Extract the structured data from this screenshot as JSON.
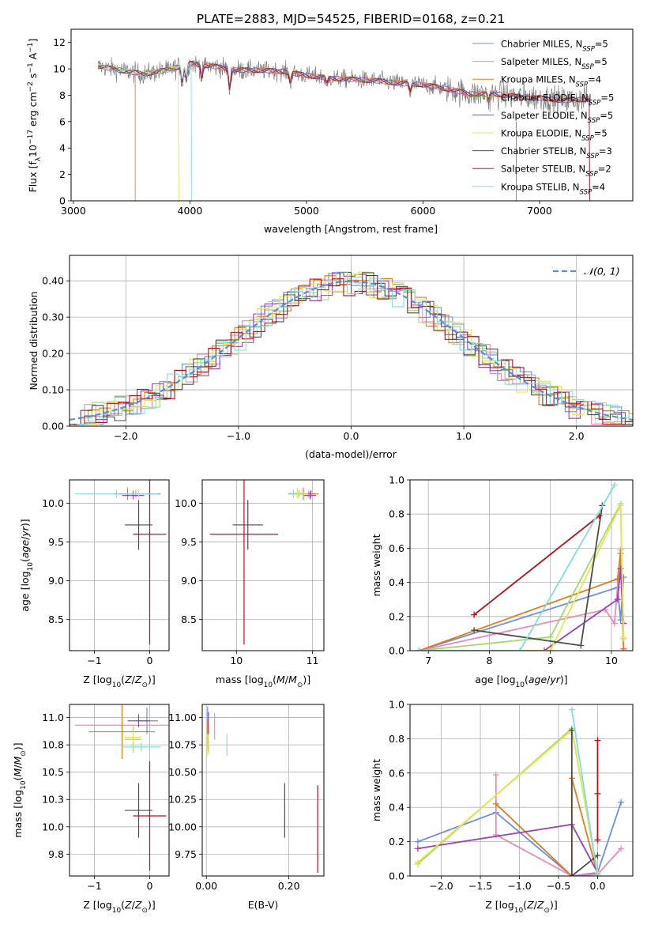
{
  "title": "PLATE=2883, MJD=54525, FIBERID=0168, z=0.21",
  "colors": {
    "Chabrier MILES": "#6e8fde",
    "Salpeter MILES": "#e88ac1",
    "Kroupa MILES": "#e07b1e",
    "Chabrier ELODIE": "#a2d96a",
    "Salpeter ELODIE": "#9b3fb5",
    "Kroupa ELODIE": "#e5e64d",
    "Chabrier STELIB": "#4d4d4d",
    "Salpeter STELIB": "#b3141c",
    "Kroupa STELIB": "#7fdede"
  },
  "chart_data": [
    {
      "id": "spectrum",
      "type": "line",
      "title": "PLATE=2883, MJD=54525, FIBERID=0168, z=0.21",
      "xlabel": "wavelength [Angstrom, rest frame]",
      "ylabel": "Flux [f_λ 10^-17 erg cm^-2 s^-1 A^-1]",
      "xlim": [
        2980,
        7800
      ],
      "ylim": [
        0,
        13
      ],
      "xticks": [
        3000,
        4000,
        5000,
        6000,
        7000
      ],
      "yticks": [
        0,
        2,
        4,
        6,
        8,
        10,
        12
      ],
      "legend_position": "top-right",
      "series": [
        {
          "name": "Chabrier MILES, N_SSP=5",
          "color": "#6e8fde"
        },
        {
          "name": "Salpeter MILES, N_SSP=5",
          "color": "#e88ac1"
        },
        {
          "name": "Kroupa MILES, N_SSP=4",
          "color": "#e07b1e"
        },
        {
          "name": "Chabrier ELODIE, N_SSP=5",
          "color": "#a2d96a"
        },
        {
          "name": "Salpeter ELODIE, N_SSP=5",
          "color": "#9b3fb5"
        },
        {
          "name": "Kroupa ELODIE, N_SSP=5",
          "color": "#e5e64d"
        },
        {
          "name": "Chabrier STELIB, N_SSP=3",
          "color": "#4d4d4d"
        },
        {
          "name": "Salpeter STELIB, N_SSP=2",
          "color": "#b3141c"
        },
        {
          "name": "Kroupa STELIB, N_SSP=4",
          "color": "#7fdede"
        }
      ],
      "data_trend": {
        "x": [
          3210,
          3400,
          3600,
          3800,
          4000,
          4200,
          4400,
          4600,
          4800,
          5000,
          5200,
          5400,
          5600,
          5800,
          6000,
          6200,
          6400,
          6600,
          6800,
          7000,
          7200,
          7430
        ],
        "y": [
          10.2,
          9.9,
          9.6,
          9.9,
          10.4,
          10.2,
          9.9,
          9.9,
          9.8,
          9.5,
          9.3,
          9.2,
          9.1,
          8.9,
          8.8,
          8.5,
          8.1,
          8.1,
          7.9,
          7.8,
          7.6,
          7.7
        ]
      }
    },
    {
      "id": "residuals",
      "type": "line",
      "xlabel": "(data-model)/error",
      "ylabel": "Normed distribution",
      "xlim": [
        -2.5,
        2.5
      ],
      "ylim": [
        0,
        0.47
      ],
      "xticks": [
        -2,
        -1,
        0,
        1,
        2
      ],
      "yticks": [
        0.0,
        0.1,
        0.2,
        0.3,
        0.4
      ],
      "legend_position": "top-right",
      "reference": {
        "name": "𝒩(0, 1)",
        "mean": 0,
        "sigma": 1,
        "color": "#5b8ed6"
      }
    },
    {
      "id": "age-vs-Z",
      "type": "scatter",
      "xlabel": "Z [log10(Z/Z☉)]",
      "ylabel": "age [log10(age/yr)]",
      "xlim": [
        -1.45,
        0.35
      ],
      "ylim": [
        8.1,
        10.3
      ],
      "xticks": [
        -1,
        0
      ],
      "yticks": [
        8.5,
        9.0,
        9.5,
        10.0
      ],
      "points": [
        {
          "model": "Chabrier MILES",
          "x": 0.0,
          "y": 10.12,
          "xerr": 0.2,
          "yerr": 0.05
        },
        {
          "model": "Salpeter MILES",
          "x": -0.25,
          "y": 10.12,
          "xerr": 0.35,
          "yerr": 0.05
        },
        {
          "model": "Kroupa MILES",
          "x": -0.4,
          "y": 10.12,
          "xerr": 0.25,
          "yerr": 0.08
        },
        {
          "model": "Chabrier ELODIE",
          "x": -0.3,
          "y": 10.12,
          "xerr": 0.1,
          "yerr": 0.05
        },
        {
          "model": "Salpeter ELODIE",
          "x": -0.3,
          "y": 10.1,
          "xerr": 0.2,
          "yerr": 0.05
        },
        {
          "model": "Kroupa ELODIE",
          "x": -0.2,
          "y": 10.12,
          "xerr": 0.1,
          "yerr": 0.06
        },
        {
          "model": "Chabrier STELIB",
          "x": -0.2,
          "y": 9.72,
          "xerr": 0.25,
          "yerr": 0.32
        },
        {
          "model": "Salpeter STELIB",
          "x": 0.0,
          "y": 9.6,
          "xerr": 0.3,
          "yerr": 1.42
        },
        {
          "model": "Kroupa STELIB",
          "x": -0.6,
          "y": 10.12,
          "xerr": 0.75,
          "yerr": 0.05
        }
      ]
    },
    {
      "id": "age-vs-mass",
      "type": "scatter",
      "xlabel": "mass [log10(M/M☉)]",
      "xlim": [
        9.55,
        11.15
      ],
      "ylim": [
        8.1,
        10.3
      ],
      "xticks": [
        10,
        11
      ],
      "yticks": [
        8.5,
        9.0,
        9.5,
        10.0
      ],
      "points": [
        {
          "model": "Chabrier MILES",
          "x": 10.98,
          "y": 10.12,
          "xerr": 0.06,
          "yerr": 0.05
        },
        {
          "model": "Salpeter MILES",
          "x": 10.95,
          "y": 10.12,
          "xerr": 0.08,
          "yerr": 0.05
        },
        {
          "model": "Kroupa MILES",
          "x": 10.88,
          "y": 10.12,
          "xerr": 0.2,
          "yerr": 0.08
        },
        {
          "model": "Chabrier ELODIE",
          "x": 10.82,
          "y": 10.12,
          "xerr": 0.12,
          "yerr": 0.05
        },
        {
          "model": "Salpeter ELODIE",
          "x": 10.97,
          "y": 10.1,
          "xerr": 0.08,
          "yerr": 0.05
        },
        {
          "model": "Kroupa ELODIE",
          "x": 10.8,
          "y": 10.13,
          "xerr": 0.1,
          "yerr": 0.07
        },
        {
          "model": "Chabrier STELIB",
          "x": 10.15,
          "y": 9.72,
          "xerr": 0.2,
          "yerr": 0.32
        },
        {
          "model": "Salpeter STELIB",
          "x": 10.1,
          "y": 9.6,
          "xerr": 0.45,
          "yerr": 1.42
        },
        {
          "model": "Kroupa STELIB",
          "x": 10.75,
          "y": 10.12,
          "xerr": 0.05,
          "yerr": 0.05
        }
      ]
    },
    {
      "id": "mass-weight-vs-age",
      "type": "line",
      "xlabel": "age [log10(age/yr)]",
      "ylabel": "mass weight",
      "xlim": [
        6.7,
        10.35
      ],
      "ylim": [
        0,
        1
      ],
      "xticks": [
        7,
        8,
        9,
        10
      ],
      "yticks": [
        0.0,
        0.2,
        0.4,
        0.6,
        0.8,
        1.0
      ],
      "series": [
        {
          "name": "Chabrier MILES",
          "x": [
            6.85,
            10.1,
            10.15,
            10.2
          ],
          "y": [
            0.0,
            0.37,
            0.18,
            0.43
          ]
        },
        {
          "name": "Salpeter MILES",
          "x": [
            6.85,
            9.9,
            10.05,
            10.15,
            10.2
          ],
          "y": [
            0.0,
            0.24,
            0.16,
            0.59,
            0.01
          ]
        },
        {
          "name": "Kroupa MILES",
          "x": [
            6.85,
            10.1,
            10.15,
            10.2
          ],
          "y": [
            0.0,
            0.42,
            0.57,
            0.01
          ]
        },
        {
          "name": "Chabrier ELODIE",
          "x": [
            6.85,
            9.0,
            10.15,
            10.2
          ],
          "y": [
            0.0,
            0.08,
            0.86,
            0.07
          ]
        },
        {
          "name": "Salpeter ELODIE",
          "x": [
            6.85,
            8.9,
            10.1,
            10.15,
            10.2
          ],
          "y": [
            0.0,
            0.0,
            0.3,
            0.48,
            0.16
          ]
        },
        {
          "name": "Kroupa ELODIE",
          "x": [
            6.85,
            9.0,
            10.15,
            10.2
          ],
          "y": [
            0.0,
            0.0,
            0.85,
            0.08
          ]
        },
        {
          "name": "Chabrier STELIB",
          "x": [
            7.75,
            9.5,
            9.85
          ],
          "y": [
            0.12,
            0.03,
            0.85
          ]
        },
        {
          "name": "Salpeter STELIB",
          "x": [
            7.75,
            9.8
          ],
          "y": [
            0.21,
            0.79
          ]
        },
        {
          "name": "Kroupa STELIB",
          "x": [
            6.85,
            8.5,
            10.05
          ],
          "y": [
            0.0,
            0.0,
            0.97
          ]
        }
      ]
    },
    {
      "id": "mass-vs-Z",
      "type": "scatter",
      "xlabel": "Z [log10(Z/Z☉)]",
      "ylabel": "mass [log10(M/M☉)]",
      "xlim": [
        -1.45,
        0.35
      ],
      "ylim": [
        9.55,
        11.12
      ],
      "xticks": [
        -1,
        0
      ],
      "yticks": [
        9.75,
        10.0,
        10.25,
        10.5,
        10.75,
        11.0
      ],
      "points": [
        {
          "model": "Chabrier MILES",
          "x": -0.05,
          "y": 10.97,
          "xerr": 0.2,
          "yerr": 0.12
        },
        {
          "model": "Salpeter MILES",
          "x": -0.5,
          "y": 10.93,
          "xerr": 0.85,
          "yerr": 0.05
        },
        {
          "model": "Kroupa MILES",
          "x": -0.5,
          "y": 10.87,
          "xerr": 0.6,
          "yerr": 0.25
        },
        {
          "model": "Chabrier ELODIE",
          "x": -0.3,
          "y": 10.8,
          "xerr": 0.15,
          "yerr": 0.12
        },
        {
          "model": "Salpeter ELODIE",
          "x": -0.2,
          "y": 10.97,
          "xerr": 0.2,
          "yerr": 0.06
        },
        {
          "model": "Kroupa ELODIE",
          "x": -0.3,
          "y": 10.82,
          "xerr": 0.15,
          "yerr": 0.05
        },
        {
          "model": "Chabrier STELIB",
          "x": -0.2,
          "y": 10.15,
          "xerr": 0.25,
          "yerr": 0.25
        },
        {
          "model": "Salpeter STELIB",
          "x": 0.0,
          "y": 10.1,
          "xerr": 0.3,
          "yerr": 0.5
        },
        {
          "model": "Kroupa STELIB",
          "x": -0.15,
          "y": 10.73,
          "xerr": 0.35,
          "yerr": 0.04
        }
      ]
    },
    {
      "id": "mass-vs-ebv",
      "type": "scatter",
      "xlabel": "E(B-V)",
      "xlim": [
        -0.01,
        0.285
      ],
      "ylim": [
        9.55,
        11.12
      ],
      "xticks": [
        0.0,
        0.2
      ],
      "yticks": [
        9.75,
        10.0,
        10.25,
        10.5,
        10.75,
        11.0
      ],
      "points": [
        {
          "model": "Chabrier MILES",
          "x": 0.003,
          "y": 10.97,
          "yerr": 0.13
        },
        {
          "model": "Salpeter MILES",
          "x": 0.02,
          "y": 10.92,
          "yerr": 0.12
        },
        {
          "model": "Kroupa MILES",
          "x": 0.003,
          "y": 10.85,
          "yerr": 0.12
        },
        {
          "model": "Chabrier ELODIE",
          "x": 0.005,
          "y": 10.8,
          "yerr": 0.12
        },
        {
          "model": "Salpeter ELODIE",
          "x": 0.005,
          "y": 10.95,
          "yerr": 0.1
        },
        {
          "model": "Kroupa ELODIE",
          "x": 0.003,
          "y": 10.75,
          "yerr": 0.1
        },
        {
          "model": "Chabrier STELIB",
          "x": 0.19,
          "y": 10.15,
          "yerr": 0.25
        },
        {
          "model": "Salpeter STELIB",
          "x": 0.27,
          "y": 9.98,
          "yerr": 0.4
        },
        {
          "model": "Kroupa STELIB",
          "x": 0.05,
          "y": 10.75,
          "yerr": 0.1
        }
      ]
    },
    {
      "id": "mass-weight-vs-Z",
      "type": "line",
      "xlabel": "Z [log10(Z/Z☉)]",
      "ylabel": "mass weight",
      "xlim": [
        -2.4,
        0.45
      ],
      "ylim": [
        0,
        1
      ],
      "xticks": [
        -2.0,
        -1.5,
        -1.0,
        -0.5,
        0.0
      ],
      "yticks": [
        0.0,
        0.2,
        0.4,
        0.6,
        0.8,
        1.0
      ],
      "series": [
        {
          "name": "Chabrier MILES",
          "x": [
            -2.3,
            -1.3,
            -0.33,
            0.0,
            0.3
          ],
          "y": [
            0.2,
            0.37,
            0.0,
            0.02,
            0.43
          ]
        },
        {
          "name": "Salpeter MILES",
          "x": [
            -1.3,
            -1.3,
            -0.33,
            0.0,
            0.3
          ],
          "y": [
            0.59,
            0.24,
            0.0,
            0.01,
            0.16
          ]
        },
        {
          "name": "Kroupa MILES",
          "x": [
            -1.3,
            -0.33,
            -0.33,
            0.0
          ],
          "y": [
            0.42,
            0.0,
            0.57,
            0.01
          ]
        },
        {
          "name": "Chabrier ELODIE",
          "x": [
            -2.3,
            -0.33,
            0.0
          ],
          "y": [
            0.07,
            0.86,
            0.01
          ]
        },
        {
          "name": "Salpeter ELODIE",
          "x": [
            -2.3,
            -0.33,
            0.0
          ],
          "y": [
            0.16,
            0.3,
            0.02
          ]
        },
        {
          "name": "Kroupa ELODIE",
          "x": [
            -2.3,
            -0.33,
            0.0
          ],
          "y": [
            0.08,
            0.85,
            0.02
          ]
        },
        {
          "name": "Chabrier STELIB",
          "x": [
            -0.33,
            -0.33,
            0.0
          ],
          "y": [
            0.85,
            0.0,
            0.12
          ]
        },
        {
          "name": "Salpeter STELIB",
          "x": [
            0.0,
            0.0,
            0.0
          ],
          "y": [
            0.79,
            0.48,
            0.21
          ]
        },
        {
          "name": "Kroupa STELIB",
          "x": [
            -0.33,
            0.0
          ],
          "y": [
            0.97,
            0.0
          ]
        }
      ]
    }
  ]
}
